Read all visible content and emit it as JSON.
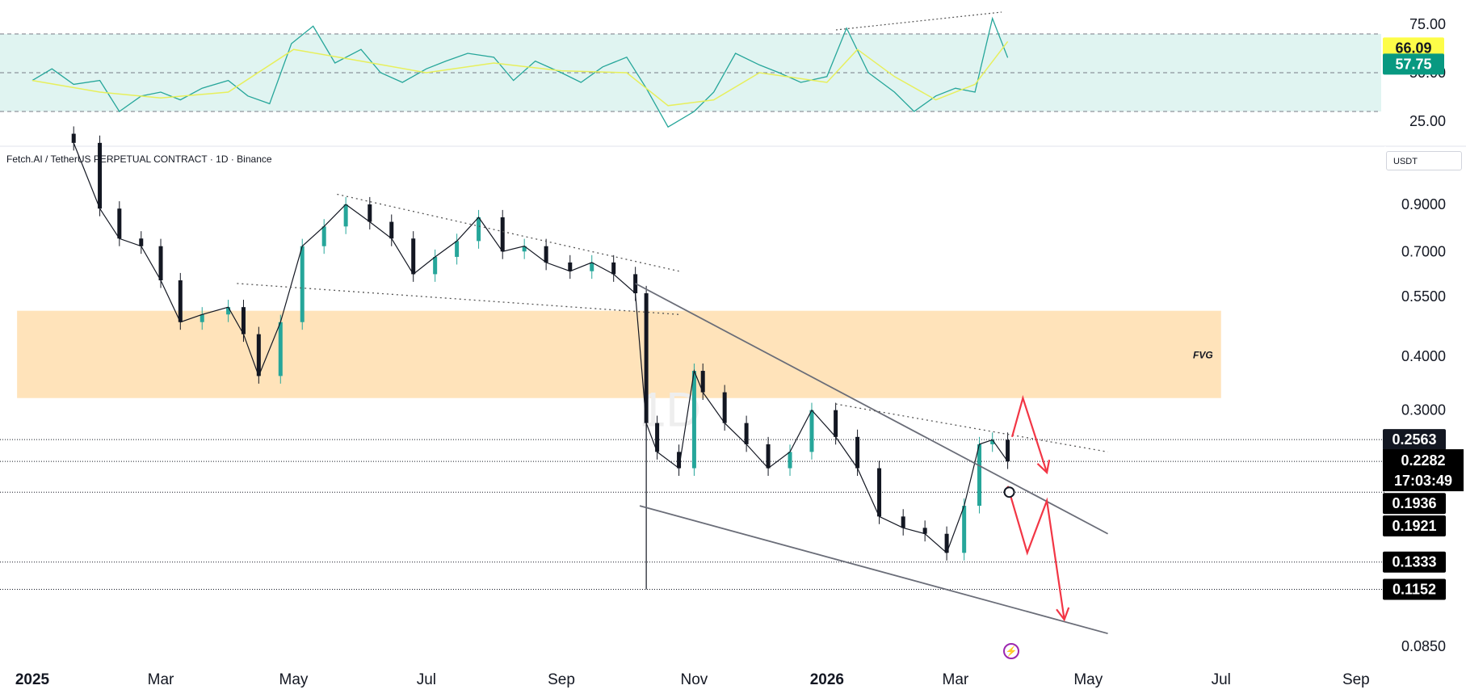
{
  "header": {
    "title": "Fetch.AI / TetherUS PERPETUAL CONTRACT · 1D · Binance",
    "currency": "USDT"
  },
  "watermark": "1D",
  "chart_data": [
    {
      "type": "line",
      "title": "",
      "role": "oscillator",
      "yaxis_ticks": [
        "75.00",
        "50.00",
        "25.00"
      ],
      "ylim": [
        15,
        80
      ],
      "bands": {
        "upper": 70,
        "middle": 50,
        "lower": 30
      },
      "series": [
        {
          "color": "#26a69a",
          "x": [
            "2025-01-01",
            "2025-01-10",
            "2025-01-20",
            "2025-02-01",
            "2025-02-10",
            "2025-02-20",
            "2025-03-01",
            "2025-03-10",
            "2025-03-20",
            "2025-04-01",
            "2025-04-10",
            "2025-04-20",
            "2025-04-30",
            "2025-05-10",
            "2025-05-20",
            "2025-06-01",
            "2025-06-10",
            "2025-06-20",
            "2025-07-01",
            "2025-07-10",
            "2025-07-20",
            "2025-08-01",
            "2025-08-10",
            "2025-08-20",
            "2025-09-01",
            "2025-09-10",
            "2025-09-20",
            "2025-10-01",
            "2025-10-10",
            "2025-10-20",
            "2025-11-01",
            "2025-11-10",
            "2025-11-20",
            "2025-12-01",
            "2025-12-10",
            "2025-12-20",
            "2026-01-01",
            "2026-01-10",
            "2026-01-20",
            "2026-02-01",
            "2026-02-10",
            "2026-02-20",
            "2026-03-01",
            "2026-03-10",
            "2026-03-18",
            "2026-03-25"
          ],
          "values": [
            46,
            52,
            44,
            46,
            30,
            38,
            40,
            36,
            42,
            46,
            38,
            34,
            65,
            74,
            55,
            62,
            50,
            45,
            52,
            56,
            60,
            58,
            46,
            56,
            50,
            45,
            53,
            58,
            42,
            22,
            30,
            40,
            60,
            54,
            50,
            45,
            48,
            73,
            50,
            40,
            30,
            38,
            42,
            40,
            78,
            57.75
          ]
        },
        {
          "color": "#e7ef5c",
          "x": [
            "2025-01-01",
            "2025-02-01",
            "2025-03-01",
            "2025-04-01",
            "2025-05-01",
            "2025-06-01",
            "2025-07-01",
            "2025-08-01",
            "2025-09-01",
            "2025-10-01",
            "2025-10-20",
            "2025-11-10",
            "2025-12-01",
            "2026-01-01",
            "2026-01-15",
            "2026-02-01",
            "2026-02-20",
            "2026-03-10",
            "2026-03-25"
          ],
          "values": [
            46,
            40,
            37,
            40,
            62,
            56,
            50,
            55,
            51,
            50,
            33,
            36,
            50,
            45,
            62,
            48,
            36,
            44,
            66.09
          ]
        }
      ],
      "price_labels": [
        {
          "text": "66.09",
          "bg": "#fdfd48",
          "fg": "#131722"
        },
        {
          "text": "57.75",
          "bg": "#089981",
          "fg": "#ffffff"
        }
      ]
    },
    {
      "type": "candlestick",
      "title": "Fetch.AI / TetherUS PERPETUAL CONTRACT · 1D · Binance",
      "scale": "log",
      "ylim": [
        0.08,
        1.3
      ],
      "yaxis_ticks": [
        "0.9000",
        "0.7000",
        "0.5500",
        "0.4000",
        "0.3000",
        "0.0850"
      ],
      "xaxis_ticks": [
        "2025",
        "Mar",
        "May",
        "Jul",
        "Sep",
        "Nov",
        "2026",
        "Mar",
        "May",
        "Jul",
        "Sep"
      ],
      "series": [
        {
          "name": "",
          "up_color": "#26a69a",
          "down_color": "#131722",
          "x": [
            "2025-01-20",
            "2025-02-01",
            "2025-02-10",
            "2025-02-20",
            "2025-03-01",
            "2025-03-10",
            "2025-03-20",
            "2025-04-01",
            "2025-04-08",
            "2025-04-15",
            "2025-04-25",
            "2025-05-05",
            "2025-05-15",
            "2025-05-25",
            "2025-06-05",
            "2025-06-15",
            "2025-06-25",
            "2025-07-05",
            "2025-07-15",
            "2025-07-25",
            "2025-08-05",
            "2025-08-15",
            "2025-08-25",
            "2025-09-05",
            "2025-09-15",
            "2025-09-25",
            "2025-10-05",
            "2025-10-10",
            "2025-10-15",
            "2025-10-25",
            "2025-11-01",
            "2025-11-05",
            "2025-11-15",
            "2025-11-25",
            "2025-12-05",
            "2025-12-15",
            "2025-12-25",
            "2026-01-05",
            "2026-01-15",
            "2026-01-25",
            "2026-02-05",
            "2026-02-15",
            "2026-02-25",
            "2026-03-05",
            "2026-03-12",
            "2026-03-18",
            "2026-03-25"
          ],
          "values": [
            1.25,
            0.88,
            0.75,
            0.72,
            0.6,
            0.48,
            0.5,
            0.52,
            0.45,
            0.36,
            0.48,
            0.72,
            0.8,
            0.9,
            0.82,
            0.75,
            0.62,
            0.68,
            0.74,
            0.84,
            0.7,
            0.72,
            0.66,
            0.63,
            0.66,
            0.62,
            0.56,
            0.28,
            0.24,
            0.22,
            0.37,
            0.33,
            0.28,
            0.25,
            0.22,
            0.24,
            0.3,
            0.26,
            0.22,
            0.17,
            0.16,
            0.155,
            0.14,
            0.18,
            0.25,
            0.256,
            0.2282
          ]
        }
      ],
      "annotations": [
        {
          "type": "zone",
          "label": "FVG",
          "price_range": [
            0.32,
            0.51
          ],
          "x_range": [
            "2024-12-25",
            "2026-07-01"
          ]
        },
        {
          "type": "trendline",
          "style": "dotted",
          "from": {
            "x": "2025-05-21",
            "y": 0.95
          },
          "to": {
            "x": "2025-10-25",
            "y": 0.63
          }
        },
        {
          "type": "trendline",
          "style": "dotted",
          "from": {
            "x": "2025-04-05",
            "y": 0.59
          },
          "to": {
            "x": "2025-10-25",
            "y": 0.5
          }
        },
        {
          "type": "trendline",
          "style": "solid",
          "from": {
            "x": "2025-10-05",
            "y": 0.59
          },
          "to": {
            "x": "2026-05-10",
            "y": 0.155
          }
        },
        {
          "type": "trendline",
          "style": "solid",
          "from": {
            "x": "2025-10-07",
            "y": 0.18
          },
          "to": {
            "x": "2026-05-10",
            "y": 0.091
          }
        },
        {
          "type": "trendline",
          "style": "dotted",
          "from": {
            "x": "2026-01-05",
            "y": 0.31
          },
          "to": {
            "x": "2026-05-10",
            "y": 0.24
          }
        },
        {
          "type": "arrow",
          "color": "#f23645",
          "points": [
            {
              "x": "2026-03-27",
              "y": 0.26
            },
            {
              "x": "2026-04-01",
              "y": 0.32
            },
            {
              "x": "2026-04-12",
              "y": 0.215
            }
          ]
        },
        {
          "type": "arrow",
          "color": "#f23645",
          "points": [
            {
              "x": "2026-03-25",
              "y": 0.2
            },
            {
              "x": "2026-04-03",
              "y": 0.14
            },
            {
              "x": "2026-04-12",
              "y": 0.185
            },
            {
              "x": "2026-04-20",
              "y": 0.098
            }
          ]
        }
      ],
      "price_labels": [
        {
          "text": "0.2563",
          "bg": "#131722",
          "fg": "#ffffff"
        },
        {
          "text": "0.2282",
          "bg": "#000000",
          "fg": "#ffffff"
        },
        {
          "text": "17:03:49",
          "bg": "#000000",
          "fg": "#ffffff"
        },
        {
          "text": "0.1936",
          "bg": "#000000",
          "fg": "#ffffff"
        },
        {
          "text": "0.1921",
          "bg": "#000000",
          "fg": "#ffffff"
        },
        {
          "text": "0.1333",
          "bg": "#000000",
          "fg": "#ffffff"
        },
        {
          "text": "0.1152",
          "bg": "#000000",
          "fg": "#ffffff"
        }
      ],
      "horizontal_levels": [
        0.2563,
        0.2282,
        0.1936,
        0.1333,
        0.1152
      ]
    }
  ]
}
